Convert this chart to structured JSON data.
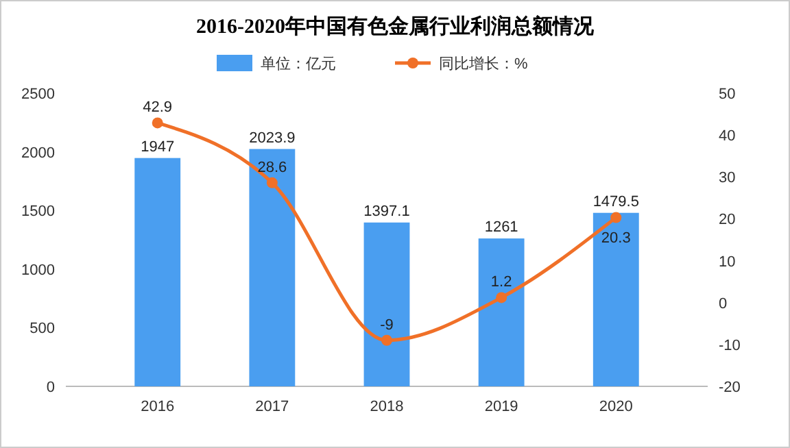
{
  "chart_data": {
    "type": "bar",
    "title": "2016-2020年中国有色金属行业利润总额情况",
    "categories": [
      "2016",
      "2017",
      "2018",
      "2019",
      "2020"
    ],
    "series": [
      {
        "name": "单位：亿元",
        "type": "bar",
        "color": "#4a9ef0",
        "values": [
          1947,
          2023.9,
          1397.1,
          1261,
          1479.5
        ]
      },
      {
        "name": "同比增长：%",
        "type": "line",
        "axis": "y2",
        "color": "#f07028",
        "values": [
          42.9,
          28.6,
          -9,
          1.2,
          20.3
        ]
      }
    ],
    "ylim": [
      0,
      2500
    ],
    "yticks": [
      0,
      500,
      1000,
      1500,
      2000,
      2500
    ],
    "y2lim": [
      -20,
      50
    ],
    "y2ticks": [
      -20,
      -10,
      0,
      10,
      20,
      30,
      40,
      50
    ],
    "data_labels": true,
    "legend": "top",
    "grid": false,
    "marker": "circle",
    "line_style": "solid"
  }
}
